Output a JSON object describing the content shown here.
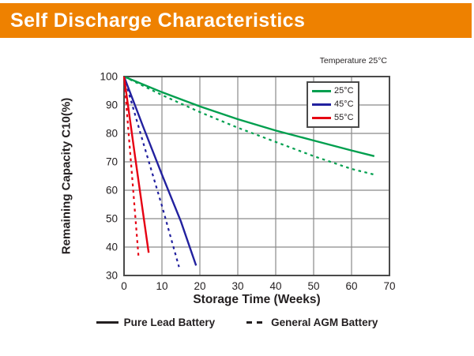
{
  "header": {
    "title": "Self Discharge Characteristics"
  },
  "chart": {
    "temperature_note": "Temperature 25°C",
    "xlabel": "Storage Time (Weeks)",
    "ylabel": "Remaining Capacity C10(%)",
    "bottom_legend": [
      {
        "label": "Pure Lead Battery",
        "style": "solid"
      },
      {
        "label": "General AGM Battery",
        "style": "dashed"
      }
    ]
  },
  "chart_data": {
    "type": "line",
    "title": "Self Discharge Characteristics",
    "xlabel": "Storage Time (Weeks)",
    "ylabel": "Remaining Capacity C10(%)",
    "xlim": [
      0,
      70
    ],
    "ylim": [
      30,
      100
    ],
    "x_ticks": [
      0,
      10,
      20,
      30,
      40,
      50,
      60,
      70
    ],
    "y_ticks": [
      30,
      40,
      50,
      60,
      70,
      80,
      90,
      100
    ],
    "grid": true,
    "legend_position": "top-right",
    "legend_items": [
      {
        "label": "25°C",
        "color": "#009F4E"
      },
      {
        "label": "45°C",
        "color": "#22219F"
      },
      {
        "label": "55°C",
        "color": "#E60012"
      }
    ],
    "series": [
      {
        "name": "25°C",
        "battery": "Pure Lead Battery",
        "color": "#009F4E",
        "style": "solid",
        "points": [
          [
            0,
            100
          ],
          [
            10,
            94.5
          ],
          [
            20,
            89.5
          ],
          [
            30,
            85
          ],
          [
            40,
            81
          ],
          [
            50,
            77.5
          ],
          [
            60,
            74
          ],
          [
            66,
            72
          ]
        ]
      },
      {
        "name": "25°C",
        "battery": "General AGM Battery",
        "color": "#009F4E",
        "style": "dashed",
        "points": [
          [
            0,
            100
          ],
          [
            10,
            93.5
          ],
          [
            20,
            87.5
          ],
          [
            30,
            82
          ],
          [
            40,
            77
          ],
          [
            50,
            72
          ],
          [
            60,
            67.5
          ],
          [
            66,
            65.5
          ]
        ]
      },
      {
        "name": "45°C",
        "battery": "Pure Lead Battery",
        "color": "#22219F",
        "style": "solid",
        "points": [
          [
            0,
            100
          ],
          [
            5,
            82.5
          ],
          [
            10,
            65.5
          ],
          [
            15,
            49
          ],
          [
            19,
            33.5
          ]
        ]
      },
      {
        "name": "45°C",
        "battery": "General AGM Battery",
        "color": "#22219F",
        "style": "dashed",
        "points": [
          [
            0,
            100
          ],
          [
            5,
            77
          ],
          [
            10,
            54.5
          ],
          [
            14.5,
            33
          ]
        ]
      },
      {
        "name": "55°C",
        "battery": "Pure Lead Battery",
        "color": "#E60012",
        "style": "solid",
        "points": [
          [
            0,
            100
          ],
          [
            3,
            71
          ],
          [
            6.5,
            38
          ]
        ]
      },
      {
        "name": "55°C",
        "battery": "General AGM Battery",
        "color": "#E60012",
        "style": "dashed",
        "points": [
          [
            0,
            100
          ],
          [
            2,
            67
          ],
          [
            3.8,
            37
          ]
        ]
      }
    ]
  },
  "colors": {
    "banner": "#EE8100",
    "grid": "#8A8A8A",
    "frame": "#4A4A4A",
    "text": "#231F20"
  }
}
